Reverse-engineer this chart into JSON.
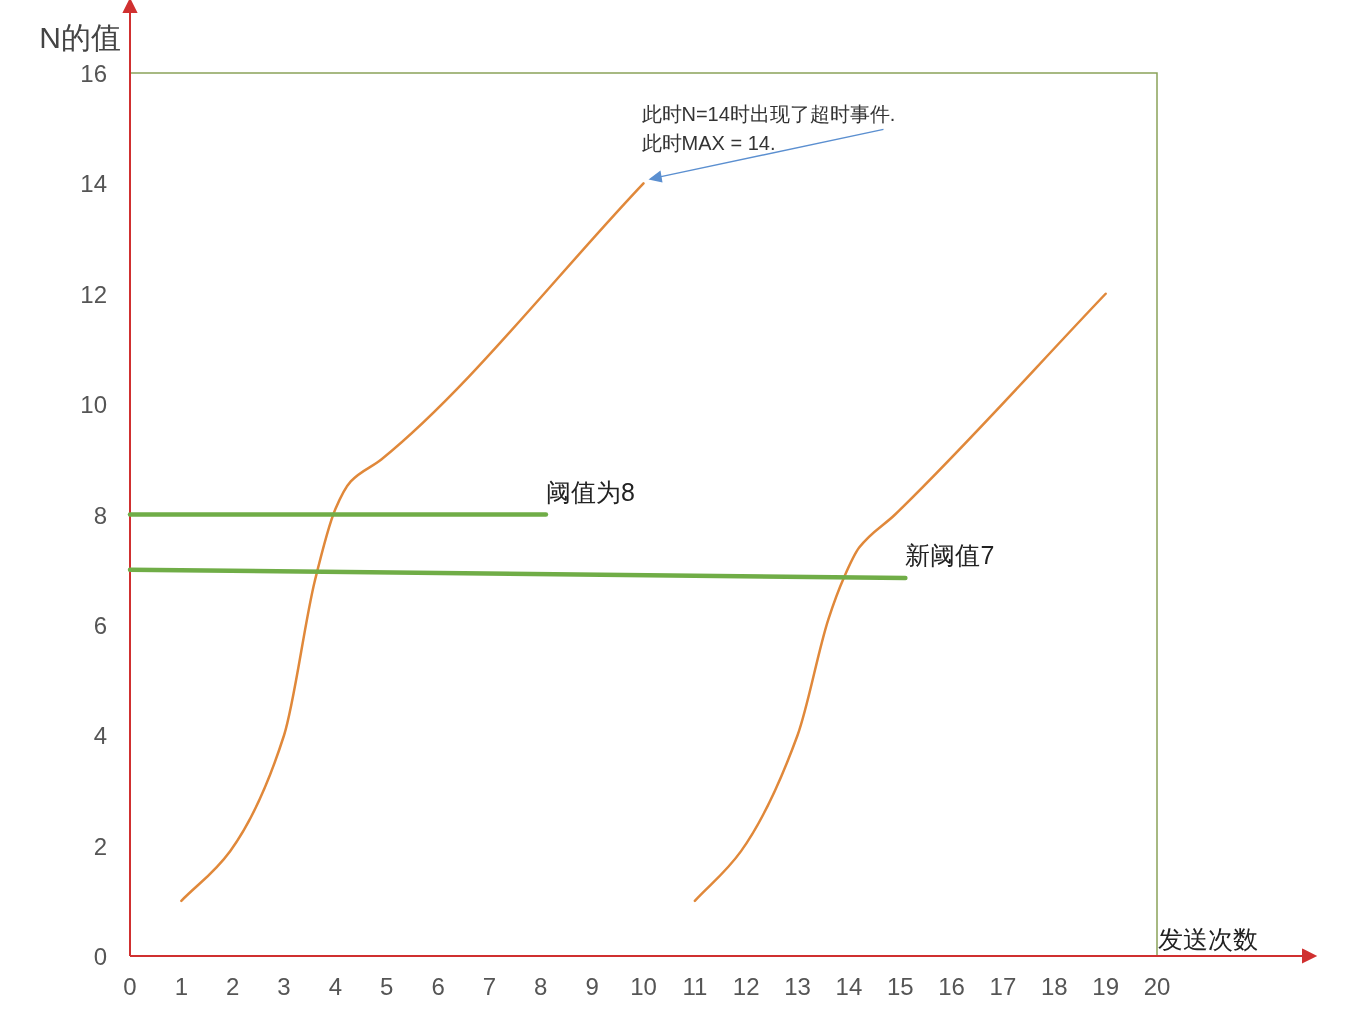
{
  "chart_data": {
    "type": "line",
    "xlabel": "发送次数",
    "ylabel": "N的值",
    "xlim": [
      0,
      20
    ],
    "xticks": [
      0,
      1,
      2,
      3,
      4,
      5,
      6,
      7,
      8,
      9,
      10,
      11,
      12,
      13,
      14,
      15,
      16,
      17,
      18,
      19,
      20
    ],
    "ylim": [
      0,
      16
    ],
    "yticks": [
      0,
      2,
      4,
      6,
      8,
      10,
      12,
      14,
      16
    ],
    "series": [
      {
        "color": "#e0883a",
        "x": [
          1,
          1.95,
          3.0,
          3.6,
          4.0,
          4.3,
          4.9,
          10.0
        ],
        "values": [
          1.0,
          1.9,
          4.0,
          6.8,
          8.1,
          8.6,
          9.0,
          14.0
        ]
      },
      {
        "color": "#e0883a",
        "x": [
          11.0,
          11.9,
          13.0,
          13.6,
          13.9,
          14.2,
          14.9,
          19.0
        ],
        "values": [
          1.0,
          1.9,
          4.0,
          6.1,
          6.85,
          7.4,
          8.0,
          12.0
        ]
      },
      {
        "name": "阈值为8",
        "color": "#70ad47",
        "x": [
          0,
          8.1
        ],
        "values": [
          8,
          8
        ]
      },
      {
        "name": "新阈值7",
        "color": "#70ad47",
        "x": [
          0,
          15.1
        ],
        "values": [
          7.0,
          6.85
        ]
      }
    ],
    "annotations": [
      {
        "text": "此时N=14时出现了超时事件.\n此时MAX = 14.",
        "x": 10,
        "y": 14
      }
    ]
  }
}
